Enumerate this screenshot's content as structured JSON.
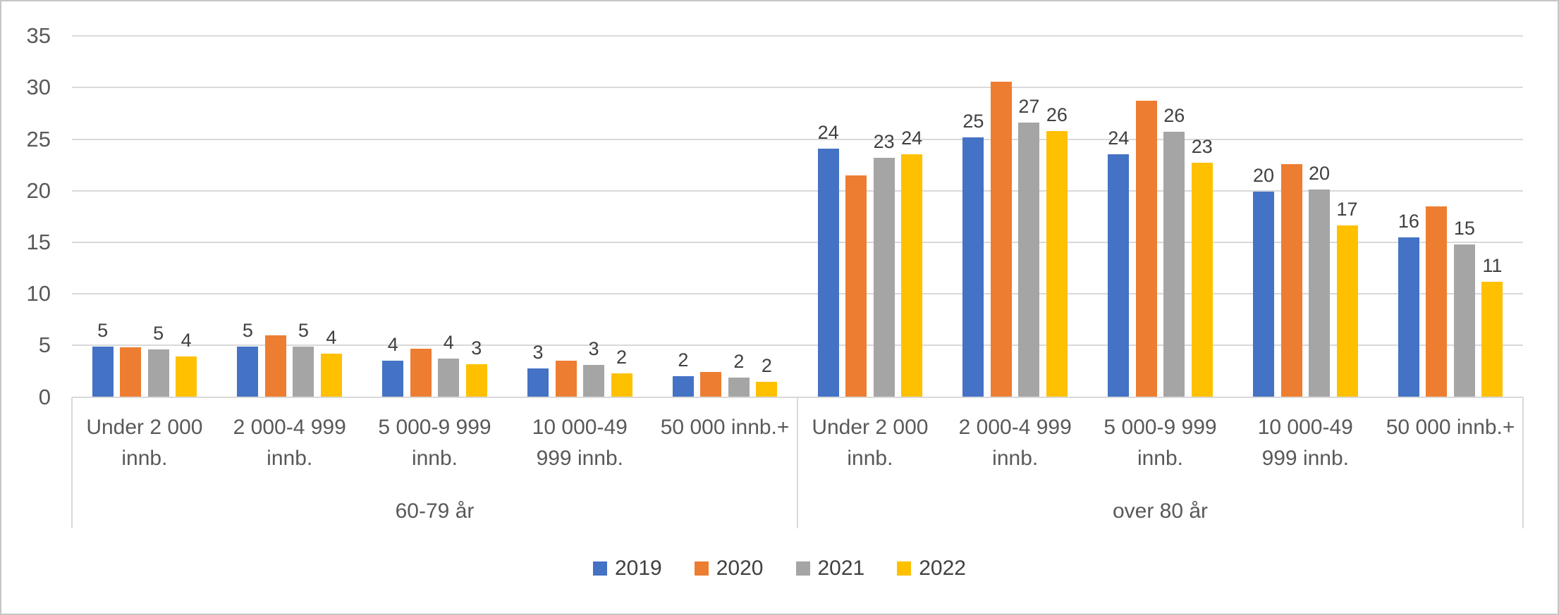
{
  "chart_data": {
    "type": "bar",
    "title": "",
    "y_axis": {
      "min": 0,
      "max": 35,
      "tick_step": 5,
      "ticks": [
        "0",
        "5",
        "10",
        "15",
        "20",
        "25",
        "30",
        "35"
      ]
    },
    "grid": "horizontal",
    "groups": [
      "60-79 år",
      "over 80 år"
    ],
    "categories": [
      "Under 2 000 innb.",
      "2 000-4 999 innb.",
      "5 000-9 999 innb.",
      "10 000-49 999 innb.",
      "50 000 innb.+"
    ],
    "category_lines": [
      [
        "Under 2 000",
        "innb."
      ],
      [
        "2 000-4 999",
        "innb."
      ],
      [
        "5 000-9 999",
        "innb."
      ],
      [
        "10 000-49",
        "999 innb."
      ],
      [
        "50 000 innb.+"
      ]
    ],
    "legend": {
      "position": "bottom",
      "entries": [
        "2019",
        "2020",
        "2021",
        "2022"
      ]
    },
    "series": [
      {
        "name": "2019",
        "color": "#4472C4",
        "values": [
          [
            4.9,
            4.9,
            3.5,
            2.8,
            2.0
          ],
          [
            24.1,
            25.2,
            23.5,
            19.9,
            15.5
          ]
        ],
        "data_labels": [
          [
            "5",
            "5",
            "4",
            "3",
            "2"
          ],
          [
            "24",
            "25",
            "24",
            "20",
            "16"
          ]
        ]
      },
      {
        "name": "2020",
        "color": "#ED7D31",
        "values": [
          [
            4.8,
            6.0,
            4.7,
            3.5,
            2.4
          ],
          [
            21.5,
            30.6,
            28.7,
            22.6,
            18.5
          ]
        ],
        "data_labels": [
          [
            "",
            "",
            "",
            "",
            ""
          ],
          [
            "",
            "",
            "",
            "",
            ""
          ]
        ]
      },
      {
        "name": "2021",
        "color": "#A5A5A5",
        "values": [
          [
            4.6,
            4.9,
            3.7,
            3.1,
            1.9
          ],
          [
            23.2,
            26.6,
            25.7,
            20.1,
            14.8
          ]
        ],
        "data_labels": [
          [
            "5",
            "5",
            "4",
            "3",
            "2"
          ],
          [
            "23",
            "27",
            "26",
            "20",
            "15"
          ]
        ]
      },
      {
        "name": "2022",
        "color": "#FFC000",
        "values": [
          [
            3.9,
            4.2,
            3.2,
            2.3,
            1.5
          ],
          [
            23.5,
            25.8,
            22.7,
            16.6,
            11.2
          ]
        ],
        "data_labels": [
          [
            "4",
            "4",
            "3",
            "2",
            "2"
          ],
          [
            "24",
            "26",
            "23",
            "17",
            "11"
          ]
        ]
      }
    ],
    "colors": {
      "gridline": "#d9d9d9",
      "axis_text": "#595959",
      "data_label_text": "#404040",
      "frame_border": "#c6c6c6"
    }
  }
}
